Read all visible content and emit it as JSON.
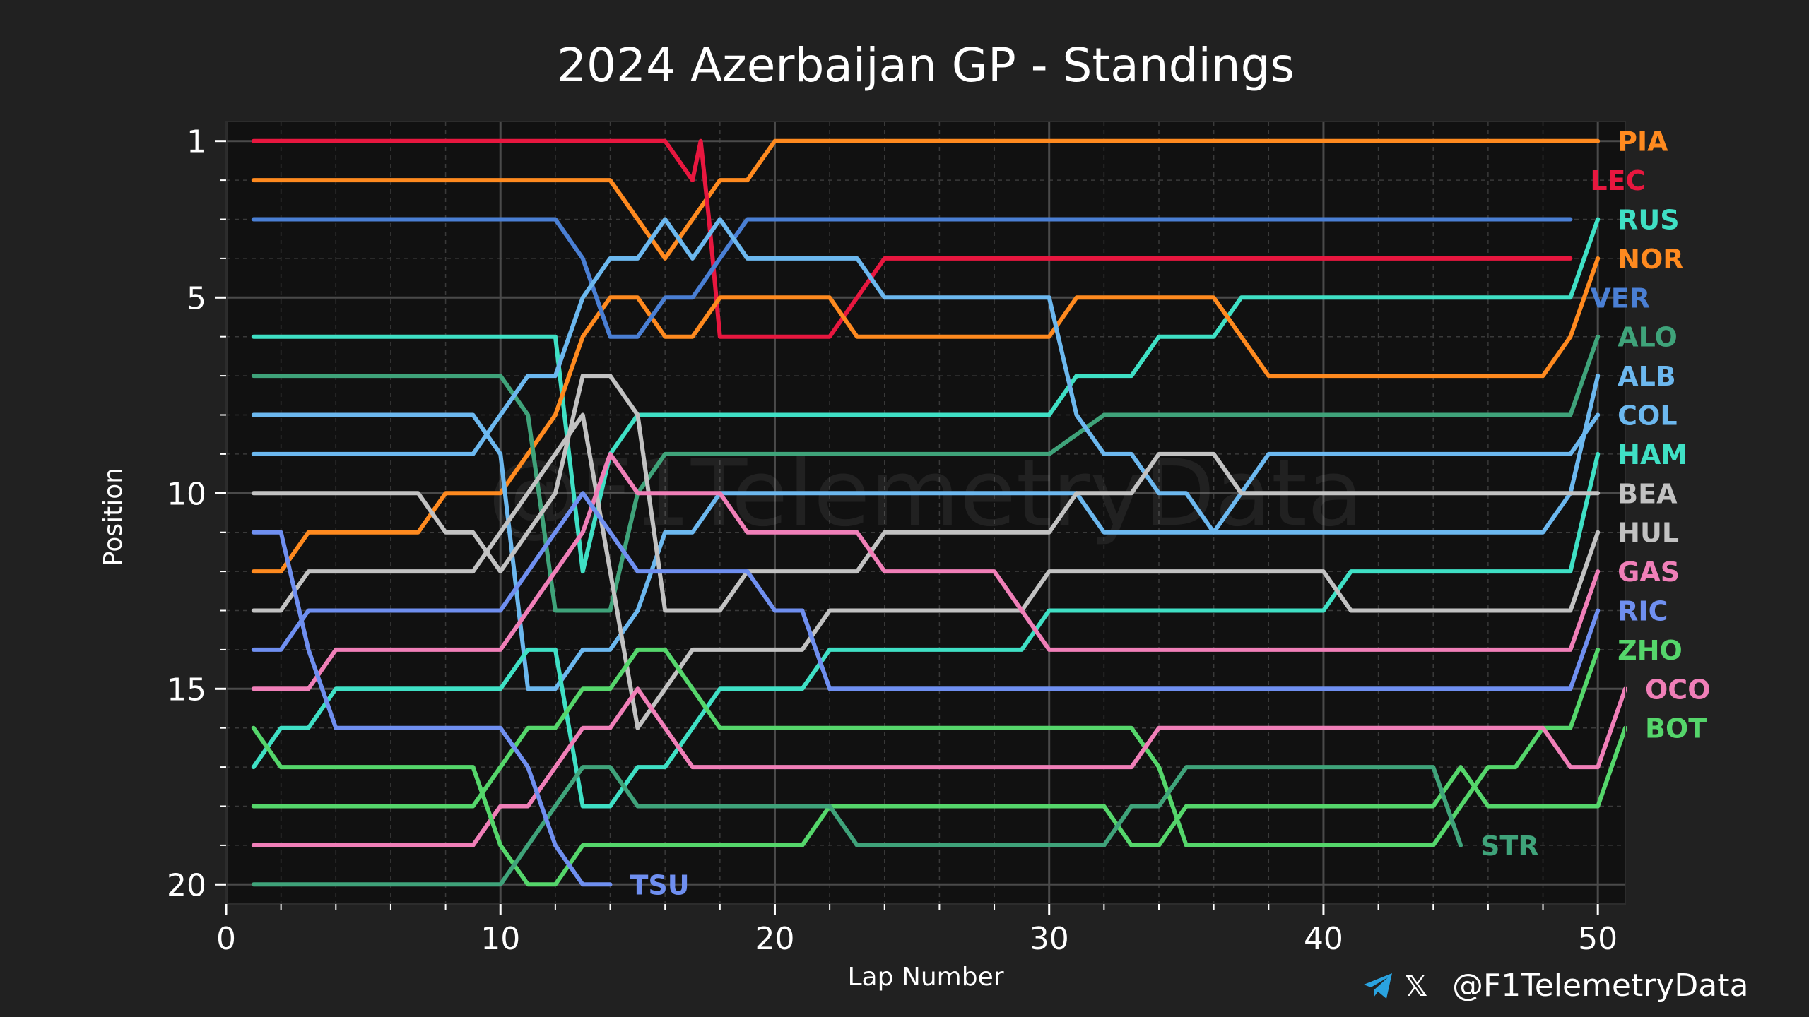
{
  "chart_data": {
    "type": "line",
    "title": "2024 Azerbaijan GP - Standings",
    "xlabel": "Lap Number",
    "ylabel": "Position",
    "xlim": [
      0,
      51
    ],
    "ylim": [
      20.5,
      0.5
    ],
    "xticks": [
      0,
      10,
      20,
      30,
      40,
      50
    ],
    "yticks": [
      1,
      5,
      10,
      15,
      20
    ],
    "grid": true,
    "watermark": "@F1TelemetryData",
    "series": [
      {
        "name": "PIA",
        "color": "#ff8a1f",
        "label_y": 1,
        "points": [
          [
            1,
            2
          ],
          [
            14,
            2
          ],
          [
            16,
            4
          ],
          [
            17,
            3
          ],
          [
            18,
            2
          ],
          [
            19,
            2
          ],
          [
            20,
            1
          ],
          [
            50,
            1
          ]
        ]
      },
      {
        "name": "LEC",
        "color": "#e8173f",
        "label_y": 2,
        "points": [
          [
            1,
            1
          ],
          [
            16,
            1
          ],
          [
            17,
            2
          ],
          [
            17.3,
            1
          ],
          [
            17.6,
            3
          ],
          [
            18,
            6
          ],
          [
            22,
            6
          ],
          [
            24,
            4
          ],
          [
            49,
            4
          ]
        ]
      },
      {
        "name": "RUS",
        "color": "#3fe0c5",
        "label_y": 3,
        "points": [
          [
            1,
            6
          ],
          [
            12,
            6
          ],
          [
            12.5,
            9
          ],
          [
            13,
            12
          ],
          [
            14,
            9
          ],
          [
            15,
            8
          ],
          [
            16,
            8
          ],
          [
            30,
            8
          ],
          [
            31,
            7
          ],
          [
            33,
            7
          ],
          [
            34,
            6
          ],
          [
            36,
            6
          ],
          [
            37,
            5
          ],
          [
            49,
            5
          ],
          [
            50,
            3
          ]
        ]
      },
      {
        "name": "NOR",
        "color": "#ff8a1f",
        "label_y": 4,
        "points": [
          [
            1,
            12
          ],
          [
            2,
            12
          ],
          [
            3,
            11
          ],
          [
            7,
            11
          ],
          [
            8,
            10
          ],
          [
            10,
            10
          ],
          [
            11,
            9
          ],
          [
            12,
            8
          ],
          [
            13,
            6
          ],
          [
            14,
            5
          ],
          [
            15,
            5
          ],
          [
            16,
            6
          ],
          [
            17,
            6
          ],
          [
            18,
            5
          ],
          [
            22,
            5
          ],
          [
            23,
            6
          ],
          [
            30,
            6
          ],
          [
            31,
            5
          ],
          [
            36,
            5
          ],
          [
            38,
            7
          ],
          [
            48,
            7
          ],
          [
            49,
            6
          ],
          [
            50,
            4
          ]
        ]
      },
      {
        "name": "VER",
        "color": "#4a7fd4",
        "label_y": 5,
        "points": [
          [
            1,
            3
          ],
          [
            12,
            3
          ],
          [
            13,
            4
          ],
          [
            13.5,
            5
          ],
          [
            14,
            6
          ],
          [
            15,
            6
          ],
          [
            16,
            5
          ],
          [
            17,
            5
          ],
          [
            19,
            3
          ],
          [
            49,
            3
          ]
        ]
      },
      {
        "name": "ALO",
        "color": "#3fa37a",
        "label_y": 6,
        "points": [
          [
            1,
            7
          ],
          [
            10,
            7
          ],
          [
            11,
            8
          ],
          [
            12,
            13
          ],
          [
            14,
            13
          ],
          [
            15,
            10
          ],
          [
            16,
            9
          ],
          [
            30,
            9
          ],
          [
            32,
            8
          ],
          [
            49,
            8
          ],
          [
            50,
            6
          ]
        ]
      },
      {
        "name": "ALB",
        "color": "#6cb8ef",
        "label_y": 7,
        "points": [
          [
            1,
            8
          ],
          [
            9,
            8
          ],
          [
            10,
            9
          ],
          [
            11,
            15
          ],
          [
            12,
            15
          ],
          [
            13,
            14
          ],
          [
            14,
            14
          ],
          [
            15,
            13
          ],
          [
            16,
            11
          ],
          [
            17,
            11
          ],
          [
            18,
            10
          ],
          [
            31,
            10
          ],
          [
            32,
            11
          ],
          [
            48,
            11
          ],
          [
            49,
            10
          ],
          [
            50,
            7
          ]
        ]
      },
      {
        "name": "COL",
        "color": "#6cb8ef",
        "label_y": 8,
        "points": [
          [
            1,
            9
          ],
          [
            9,
            9
          ],
          [
            10,
            8
          ],
          [
            11,
            7
          ],
          [
            12,
            7
          ],
          [
            12.5,
            6
          ],
          [
            13,
            5
          ],
          [
            14,
            4
          ],
          [
            15,
            4
          ],
          [
            16,
            3
          ],
          [
            17,
            4
          ],
          [
            18,
            3
          ],
          [
            19,
            4
          ],
          [
            23,
            4
          ],
          [
            24,
            5
          ],
          [
            30,
            5
          ],
          [
            31,
            8
          ],
          [
            32,
            9
          ],
          [
            33,
            9
          ],
          [
            34,
            10
          ],
          [
            35,
            10
          ],
          [
            36,
            11
          ],
          [
            37,
            10
          ],
          [
            38,
            9
          ],
          [
            49,
            9
          ],
          [
            50,
            8
          ]
        ]
      },
      {
        "name": "HAM",
        "color": "#3fe0c5",
        "label_y": 9,
        "points": [
          [
            1,
            17
          ],
          [
            2,
            16
          ],
          [
            3,
            16
          ],
          [
            4,
            15
          ],
          [
            10,
            15
          ],
          [
            11,
            14
          ],
          [
            12,
            14
          ],
          [
            13,
            18
          ],
          [
            14,
            18
          ],
          [
            15,
            17
          ],
          [
            16,
            17
          ],
          [
            18,
            15
          ],
          [
            21,
            15
          ],
          [
            22,
            14
          ],
          [
            29,
            14
          ],
          [
            30,
            13
          ],
          [
            40,
            13
          ],
          [
            41,
            12
          ],
          [
            49,
            12
          ],
          [
            50,
            9
          ]
        ]
      },
      {
        "name": "BEA",
        "color": "#c2c2c2",
        "label_y": 10,
        "points": [
          [
            1,
            10
          ],
          [
            7,
            10
          ],
          [
            8,
            11
          ],
          [
            9,
            11
          ],
          [
            10,
            12
          ],
          [
            12,
            10
          ],
          [
            13,
            7
          ],
          [
            14,
            7
          ],
          [
            15,
            8
          ],
          [
            16,
            13
          ],
          [
            18,
            13
          ],
          [
            19,
            12
          ],
          [
            23,
            12
          ],
          [
            24,
            11
          ],
          [
            30,
            11
          ],
          [
            31,
            10
          ],
          [
            33,
            10
          ],
          [
            34,
            9
          ],
          [
            36,
            9
          ],
          [
            37,
            10
          ],
          [
            49,
            10
          ],
          [
            50,
            10
          ]
        ]
      },
      {
        "name": "HUL",
        "color": "#c2c2c2",
        "label_y": 11,
        "points": [
          [
            1,
            13
          ],
          [
            2,
            13
          ],
          [
            3,
            12
          ],
          [
            9,
            12
          ],
          [
            11,
            10
          ],
          [
            12,
            9
          ],
          [
            13,
            8
          ],
          [
            14,
            12
          ],
          [
            15,
            16
          ],
          [
            17,
            14
          ],
          [
            21,
            14
          ],
          [
            22,
            13
          ],
          [
            29,
            13
          ],
          [
            30,
            12
          ],
          [
            40,
            12
          ],
          [
            41,
            13
          ],
          [
            49,
            13
          ],
          [
            50,
            11
          ]
        ]
      },
      {
        "name": "GAS",
        "color": "#f07fb8",
        "label_y": 12,
        "points": [
          [
            1,
            15
          ],
          [
            3,
            15
          ],
          [
            4,
            14
          ],
          [
            10,
            14
          ],
          [
            11,
            13
          ],
          [
            12,
            12
          ],
          [
            13,
            11
          ],
          [
            14,
            9
          ],
          [
            15,
            10
          ],
          [
            18,
            10
          ],
          [
            19,
            11
          ],
          [
            23,
            11
          ],
          [
            24,
            12
          ],
          [
            28,
            12
          ],
          [
            29,
            13
          ],
          [
            30,
            14
          ],
          [
            49,
            14
          ],
          [
            50,
            12
          ]
        ]
      },
      {
        "name": "RIC",
        "color": "#6f8ff0",
        "label_y": 13,
        "points": [
          [
            1,
            14
          ],
          [
            2,
            14
          ],
          [
            3,
            13
          ],
          [
            10,
            13
          ],
          [
            11,
            12
          ],
          [
            13,
            10
          ],
          [
            14,
            11
          ],
          [
            15,
            12
          ],
          [
            19,
            12
          ],
          [
            20,
            13
          ],
          [
            21,
            13
          ],
          [
            22,
            15
          ],
          [
            49,
            15
          ],
          [
            50,
            13
          ]
        ]
      },
      {
        "name": "ZHO",
        "color": "#55d66b",
        "label_y": 14,
        "points": [
          [
            1,
            18
          ],
          [
            9,
            18
          ],
          [
            10,
            17
          ],
          [
            11,
            16
          ],
          [
            12,
            16
          ],
          [
            13,
            15
          ],
          [
            14,
            15
          ],
          [
            15,
            14
          ],
          [
            16,
            14
          ],
          [
            18,
            16
          ],
          [
            33,
            16
          ],
          [
            34,
            17
          ],
          [
            35,
            19
          ],
          [
            44,
            19
          ],
          [
            46,
            17
          ],
          [
            47,
            17
          ],
          [
            48,
            16
          ],
          [
            49,
            16
          ],
          [
            50,
            14
          ]
        ]
      },
      {
        "name": "OCO",
        "color": "#f07fb8",
        "label_y": 15,
        "points": [
          [
            1,
            19
          ],
          [
            9,
            19
          ],
          [
            10,
            18
          ],
          [
            11,
            18
          ],
          [
            13,
            16
          ],
          [
            14,
            16
          ],
          [
            15,
            15
          ],
          [
            16,
            16
          ],
          [
            17,
            17
          ],
          [
            33,
            17
          ],
          [
            34,
            16
          ],
          [
            48,
            16
          ],
          [
            49,
            17
          ],
          [
            50,
            17
          ],
          [
            51,
            15
          ]
        ]
      },
      {
        "name": "BOT",
        "color": "#55d66b",
        "label_y": 16,
        "points": [
          [
            1,
            16
          ],
          [
            2,
            17
          ],
          [
            9,
            17
          ],
          [
            10,
            19
          ],
          [
            11,
            20
          ],
          [
            12,
            20
          ],
          [
            13,
            19
          ],
          [
            21,
            19
          ],
          [
            22,
            18
          ],
          [
            32,
            18
          ],
          [
            33,
            19
          ],
          [
            34,
            19
          ],
          [
            35,
            18
          ],
          [
            44,
            18
          ],
          [
            45,
            17
          ],
          [
            46,
            18
          ],
          [
            49,
            18
          ],
          [
            50,
            18
          ],
          [
            51,
            16
          ]
        ]
      },
      {
        "name": "STR",
        "color": "#3fa37a",
        "label_y": 19,
        "points": [
          [
            1,
            20
          ],
          [
            10,
            20
          ],
          [
            11,
            19
          ],
          [
            12,
            18
          ],
          [
            13,
            17
          ],
          [
            14,
            17
          ],
          [
            15,
            18
          ],
          [
            22,
            18
          ],
          [
            23,
            19
          ],
          [
            32,
            19
          ],
          [
            33,
            18
          ],
          [
            34,
            18
          ],
          [
            35,
            17
          ],
          [
            44,
            17
          ],
          [
            45,
            19
          ]
        ]
      },
      {
        "name": "TSU",
        "color": "#6f8ff0",
        "label_y": 20,
        "points": [
          [
            1,
            11
          ],
          [
            2,
            11
          ],
          [
            3,
            14
          ],
          [
            4,
            16
          ],
          [
            10,
            16
          ],
          [
            11,
            17
          ],
          [
            12,
            19
          ],
          [
            13,
            20
          ],
          [
            14,
            20
          ]
        ]
      }
    ]
  }
}
